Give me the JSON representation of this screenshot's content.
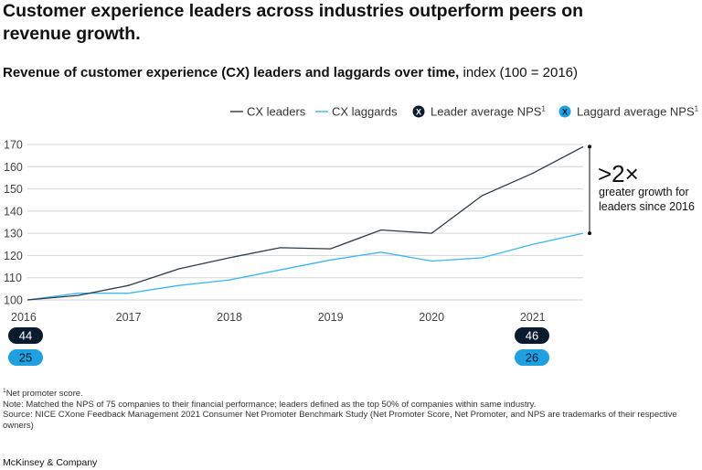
{
  "headline": "Customer experience leaders across industries outperform peers on revenue growth.",
  "subtitle": {
    "bold": "Revenue of customer experience (CX) leaders and laggards over time,",
    "rest": " index (100 = 2016)"
  },
  "legend": {
    "leaders": "CX leaders",
    "laggards": "CX laggards",
    "leader_nps": "Leader average NPS",
    "laggard_nps": "Laggard average NPS",
    "marker_symbol": "X",
    "footnote_mark": "1"
  },
  "colors": {
    "leaders": "#2d3b4a",
    "laggards": "#3fb6ec",
    "leader_badge": "#0b1b2e",
    "laggard_badge": "#1fa0e0",
    "grid": "#d4d4d4"
  },
  "annotation": {
    "big": ">2×",
    "line1": "greater growth for",
    "line2": "leaders since 2016"
  },
  "nps": {
    "start": {
      "year": "2016",
      "leader": "44",
      "laggard": "25"
    },
    "end": {
      "year": "2021",
      "leader": "46",
      "laggard": "26"
    }
  },
  "chart_data": {
    "type": "line",
    "title": "Revenue of customer experience (CX) leaders and laggards over time",
    "ylabel": "index (100 = 2016)",
    "ylim": [
      100,
      170
    ],
    "yticks": [
      100,
      110,
      120,
      130,
      140,
      150,
      160,
      170
    ],
    "xlim": [
      2016,
      2021.5
    ],
    "xticks": [
      "2016",
      "2017",
      "2018",
      "2019",
      "2020",
      "2021"
    ],
    "grid": true,
    "legend_position": "top-right",
    "series": [
      {
        "name": "CX leaders",
        "color": "#2d3b4a",
        "x": [
          2016,
          2016.5,
          2017,
          2017.5,
          2018,
          2018.5,
          2019,
          2019.5,
          2020,
          2020.5,
          2021,
          2021.5
        ],
        "y": [
          100,
          102,
          106.5,
          114,
          119,
          123.5,
          123,
          131.5,
          130,
          147,
          157,
          169
        ]
      },
      {
        "name": "CX laggards",
        "color": "#3fb6ec",
        "x": [
          2016,
          2016.5,
          2017,
          2017.5,
          2018,
          2018.5,
          2019,
          2019.5,
          2020,
          2020.5,
          2021,
          2021.5
        ],
        "y": [
          100,
          103,
          103,
          106.5,
          109,
          113.5,
          118,
          121.5,
          117.5,
          119,
          125,
          130
        ]
      }
    ]
  },
  "footnotes": {
    "nps_def": "Net promoter score.",
    "note": "Note: Matched the NPS of 75 companies to their financial performance; leaders defined as the top 50% of companies within same industry.",
    "source": "Source: NICE CXone Feedback Management 2021 Consumer Net Promoter Benchmark Study (Net Promoter Score, Net Promoter, and NPS are trademarks of their respective owners)"
  },
  "brand": "McKinsey & Company"
}
